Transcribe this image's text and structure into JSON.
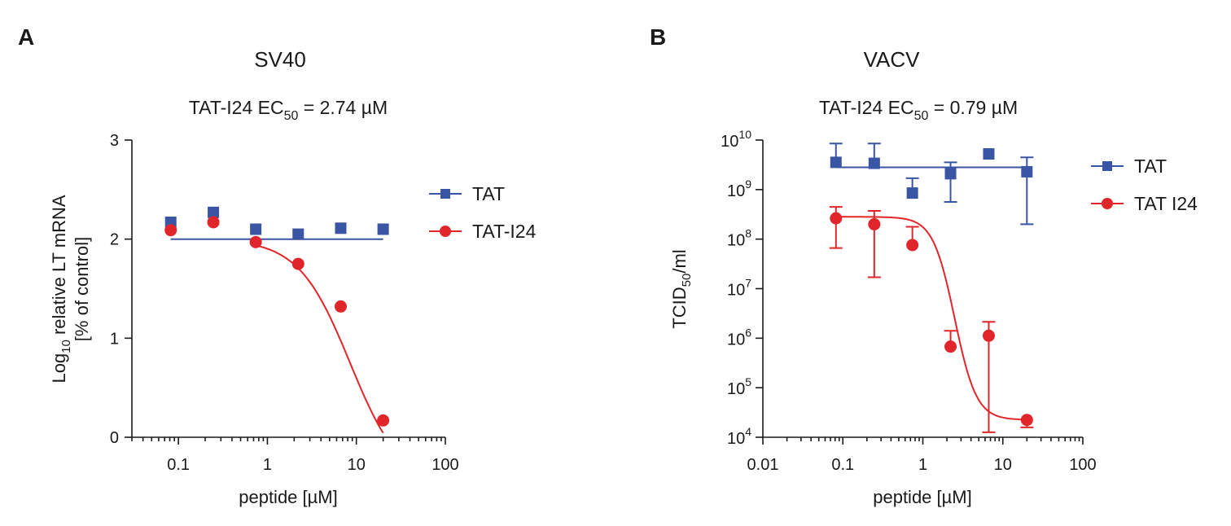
{
  "chart_data": [
    {
      "panel": "A",
      "type": "scatter",
      "title": "SV40",
      "subtitle": {
        "prefix": "TAT-I24 EC",
        "sub": "50",
        "suffix": " = 2.74 µM"
      },
      "xlabel": "peptide [µM]",
      "ylabel": {
        "line1_pre": "Log",
        "line1_sub": "10",
        "line1_post": " relative LT mRNA",
        "line2": "[% of control]"
      },
      "xscale": "log",
      "xlim": [
        0.03,
        100
      ],
      "ylim": [
        0,
        3
      ],
      "xticks": [
        {
          "value": 0.1,
          "label": "0.1"
        },
        {
          "value": 1,
          "label": "1"
        },
        {
          "value": 10,
          "label": "10"
        },
        {
          "value": 100,
          "label": "100"
        }
      ],
      "yticks": [
        {
          "value": 0,
          "label": "0"
        },
        {
          "value": 1,
          "label": "1"
        },
        {
          "value": 2,
          "label": "2"
        },
        {
          "value": 3,
          "label": "3"
        }
      ],
      "legend_position": "right",
      "series": [
        {
          "name": "TAT",
          "color": "#3a55a4",
          "marker": "square",
          "x": [
            0.082,
            0.247,
            0.74,
            2.22,
            6.67,
            20
          ],
          "y": [
            2.17,
            2.27,
            2.1,
            2.05,
            2.11,
            2.1
          ],
          "fit": {
            "type": "flat",
            "value": 2.0,
            "xrange": [
              0.082,
              20
            ]
          }
        },
        {
          "name": "TAT-I24",
          "color": "#e0262b",
          "marker": "circle",
          "x": [
            0.082,
            0.247,
            0.74,
            2.22,
            6.67,
            20
          ],
          "y": [
            2.09,
            2.17,
            1.97,
            1.75,
            1.32,
            0.17
          ],
          "fit": {
            "type": "sigmoid",
            "top": 2.0,
            "bottom": -0.5,
            "ec50": 8.5,
            "hill": 1.5,
            "xrange": [
              0.74,
              20
            ]
          }
        }
      ]
    },
    {
      "panel": "B",
      "type": "scatter",
      "title": "VACV",
      "subtitle": {
        "prefix": "TAT-I24 EC",
        "sub": "50",
        "suffix": " = 0.79 µM"
      },
      "xlabel": "peptide [µM]",
      "ylabel": {
        "pre": "TCID",
        "sub": "50",
        "post": "/ml"
      },
      "xscale": "log",
      "yscale": "log",
      "xlim": [
        0.01,
        100
      ],
      "ylim_exponent": [
        4,
        10
      ],
      "xticks": [
        {
          "value": 0.01,
          "label": "0.01"
        },
        {
          "value": 0.1,
          "label": "0.1"
        },
        {
          "value": 1,
          "label": "1"
        },
        {
          "value": 10,
          "label": "10"
        },
        {
          "value": 100,
          "label": "100"
        }
      ],
      "yticks": [
        {
          "exp": 4,
          "base": "10",
          "sup": "4"
        },
        {
          "exp": 5,
          "base": "10",
          "sup": "5"
        },
        {
          "exp": 6,
          "base": "10",
          "sup": "6"
        },
        {
          "exp": 7,
          "base": "10",
          "sup": "7"
        },
        {
          "exp": 8,
          "base": "10",
          "sup": "8"
        },
        {
          "exp": 9,
          "base": "10",
          "sup": "9"
        },
        {
          "exp": 10,
          "base": "10",
          "sup": "10"
        }
      ],
      "legend_position": "right",
      "series": [
        {
          "name": "TAT",
          "color": "#3a55a4",
          "marker": "square",
          "x": [
            0.082,
            0.247,
            0.74,
            2.22,
            6.67,
            20
          ],
          "log10_y": [
            9.55,
            9.53,
            8.93,
            9.32,
            9.72,
            9.36
          ],
          "err_hi": [
            9.93,
            9.93,
            9.23,
            9.55,
            null,
            9.65
          ],
          "err_lo": [
            null,
            null,
            null,
            8.75,
            null,
            8.3
          ],
          "fit": {
            "type": "flat",
            "log10_value": 9.45,
            "xrange": [
              0.082,
              20
            ]
          }
        },
        {
          "name": "TAT I24",
          "color": "#e0262b",
          "marker": "circle",
          "x": [
            0.082,
            0.247,
            0.74,
            2.22,
            6.67,
            20
          ],
          "log10_y": [
            8.42,
            8.3,
            7.88,
            5.83,
            6.05,
            4.35
          ],
          "err_hi": [
            8.65,
            8.57,
            8.25,
            6.15,
            6.33,
            null
          ],
          "err_lo": [
            7.82,
            7.23,
            null,
            null,
            4.1,
            4.2
          ],
          "fit": {
            "type": "sigmoid",
            "top_log": 8.45,
            "bottom_log": 4.35,
            "ec50": 2.5,
            "hill": 3.2,
            "xrange": [
              0.082,
              20
            ]
          }
        }
      ]
    }
  ],
  "panel_a": {
    "letter": "A"
  },
  "panel_b": {
    "letter": "B"
  }
}
